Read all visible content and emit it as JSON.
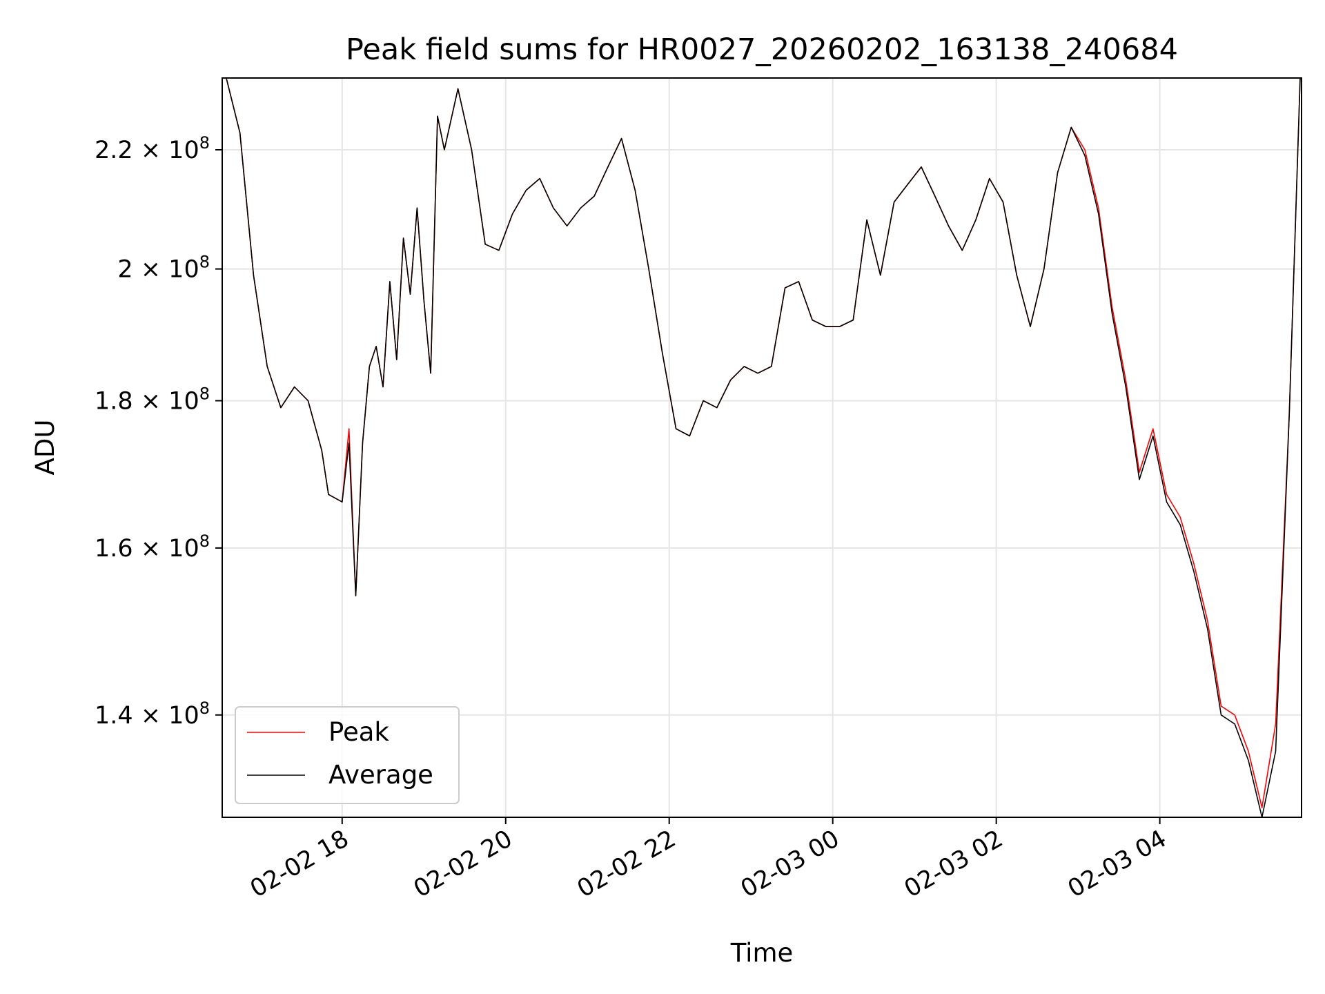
{
  "chart_data": {
    "type": "line",
    "title": "Peak field sums for HR0027_20260202_163138_240684",
    "xlabel": "Time",
    "ylabel": "ADU",
    "y_scale": "log",
    "ylim": [
      129000000,
      233000000
    ],
    "xlim": [
      "2026-02-02 16:32",
      "2026-02-03 05:44"
    ],
    "grid": true,
    "legend_position": "lower-left",
    "x_tick_labels": [
      "02-02 18",
      "02-02 20",
      "02-02 22",
      "02-03 00",
      "02-03 02",
      "02-03 04"
    ],
    "x_tick_values": [
      "2026-02-02 18:00",
      "2026-02-02 20:00",
      "2026-02-02 22:00",
      "2026-02-03 00:00",
      "2026-02-03 02:00",
      "2026-02-03 04:00"
    ],
    "y_ticks": [
      {
        "value": 140000000,
        "base": "1.4",
        "exp": "8"
      },
      {
        "value": 160000000,
        "base": "1.6",
        "exp": "8"
      },
      {
        "value": 180000000,
        "base": "1.8",
        "exp": "8"
      },
      {
        "value": 200000000,
        "base": "2",
        "exp": "8"
      },
      {
        "value": 220000000,
        "base": "2.2",
        "exp": "8"
      }
    ],
    "colors": {
      "peak": "#ff0000",
      "average": "#000000",
      "grid": "#e5e5e5"
    },
    "x": [
      "2026-02-02 16:35",
      "2026-02-02 16:45",
      "2026-02-02 16:55",
      "2026-02-02 17:05",
      "2026-02-02 17:15",
      "2026-02-02 17:25",
      "2026-02-02 17:35",
      "2026-02-02 17:45",
      "2026-02-02 17:50",
      "2026-02-02 18:00",
      "2026-02-02 18:05",
      "2026-02-02 18:10",
      "2026-02-02 18:15",
      "2026-02-02 18:20",
      "2026-02-02 18:25",
      "2026-02-02 18:30",
      "2026-02-02 18:35",
      "2026-02-02 18:40",
      "2026-02-02 18:45",
      "2026-02-02 18:50",
      "2026-02-02 18:55",
      "2026-02-02 19:00",
      "2026-02-02 19:05",
      "2026-02-02 19:10",
      "2026-02-02 19:15",
      "2026-02-02 19:25",
      "2026-02-02 19:35",
      "2026-02-02 19:45",
      "2026-02-02 19:55",
      "2026-02-02 20:05",
      "2026-02-02 20:15",
      "2026-02-02 20:25",
      "2026-02-02 20:35",
      "2026-02-02 20:45",
      "2026-02-02 20:55",
      "2026-02-02 21:05",
      "2026-02-02 21:15",
      "2026-02-02 21:25",
      "2026-02-02 21:35",
      "2026-02-02 21:45",
      "2026-02-02 21:55",
      "2026-02-02 22:05",
      "2026-02-02 22:15",
      "2026-02-02 22:25",
      "2026-02-02 22:35",
      "2026-02-02 22:45",
      "2026-02-02 22:55",
      "2026-02-02 23:05",
      "2026-02-02 23:15",
      "2026-02-02 23:25",
      "2026-02-02 23:35",
      "2026-02-02 23:45",
      "2026-02-02 23:55",
      "2026-02-03 00:05",
      "2026-02-03 00:15",
      "2026-02-03 00:25",
      "2026-02-03 00:35",
      "2026-02-03 00:45",
      "2026-02-03 00:55",
      "2026-02-03 01:05",
      "2026-02-03 01:15",
      "2026-02-03 01:25",
      "2026-02-03 01:35",
      "2026-02-03 01:45",
      "2026-02-03 01:55",
      "2026-02-03 02:05",
      "2026-02-03 02:15",
      "2026-02-03 02:25",
      "2026-02-03 02:35",
      "2026-02-03 02:45",
      "2026-02-03 02:55",
      "2026-02-03 03:05",
      "2026-02-03 03:15",
      "2026-02-03 03:25",
      "2026-02-03 03:35",
      "2026-02-03 03:45",
      "2026-02-03 03:55",
      "2026-02-03 04:05",
      "2026-02-03 04:15",
      "2026-02-03 04:25",
      "2026-02-03 04:35",
      "2026-02-03 04:45",
      "2026-02-03 04:55",
      "2026-02-03 05:05",
      "2026-02-03 05:15",
      "2026-02-03 05:25",
      "2026-02-03 05:35",
      "2026-02-03 05:43"
    ],
    "series": [
      {
        "name": "Peak",
        "values": [
          233000000,
          223000000,
          199000000,
          185000000,
          179000000,
          182000000,
          180000000,
          173000000,
          167000000,
          166000000,
          176000000,
          154000000,
          174000000,
          185000000,
          188000000,
          182000000,
          198000000,
          186000000,
          205000000,
          196000000,
          210000000,
          195000000,
          184000000,
          226000000,
          220000000,
          231000000,
          220000000,
          204000000,
          203000000,
          209000000,
          213000000,
          215000000,
          210000000,
          207000000,
          210000000,
          212000000,
          217000000,
          222000000,
          213000000,
          200000000,
          187000000,
          176000000,
          175000000,
          180000000,
          179000000,
          183000000,
          185000000,
          184000000,
          185000000,
          197000000,
          198000000,
          192000000,
          191000000,
          191000000,
          192000000,
          208000000,
          199000000,
          211000000,
          214000000,
          217000000,
          212000000,
          207000000,
          203000000,
          208000000,
          215000000,
          211000000,
          199000000,
          191000000,
          200000000,
          216000000,
          224000000,
          220000000,
          210000000,
          194000000,
          183000000,
          170000000,
          176000000,
          167000000,
          164000000,
          158000000,
          151000000,
          141000000,
          140000000,
          136000000,
          130000000,
          139000000,
          178000000,
          233000000
        ]
      },
      {
        "name": "Average",
        "values": [
          233000000,
          223000000,
          199000000,
          185000000,
          179000000,
          182000000,
          180000000,
          173000000,
          167000000,
          166000000,
          174000000,
          154000000,
          174000000,
          185000000,
          188000000,
          182000000,
          198000000,
          186000000,
          205000000,
          196000000,
          210000000,
          195000000,
          184000000,
          226000000,
          220000000,
          231000000,
          220000000,
          204000000,
          203000000,
          209000000,
          213000000,
          215000000,
          210000000,
          207000000,
          210000000,
          212000000,
          217000000,
          222000000,
          213000000,
          200000000,
          187000000,
          176000000,
          175000000,
          180000000,
          179000000,
          183000000,
          185000000,
          184000000,
          185000000,
          197000000,
          198000000,
          192000000,
          191000000,
          191000000,
          192000000,
          208000000,
          199000000,
          211000000,
          214000000,
          217000000,
          212000000,
          207000000,
          203000000,
          208000000,
          215000000,
          211000000,
          199000000,
          191000000,
          200000000,
          216000000,
          224000000,
          219000000,
          209000000,
          193000000,
          182000000,
          169000000,
          175000000,
          166000000,
          163000000,
          157000000,
          150000000,
          140000000,
          139000000,
          135000000,
          129000000,
          136000000,
          178000000,
          233000000
        ]
      }
    ]
  }
}
